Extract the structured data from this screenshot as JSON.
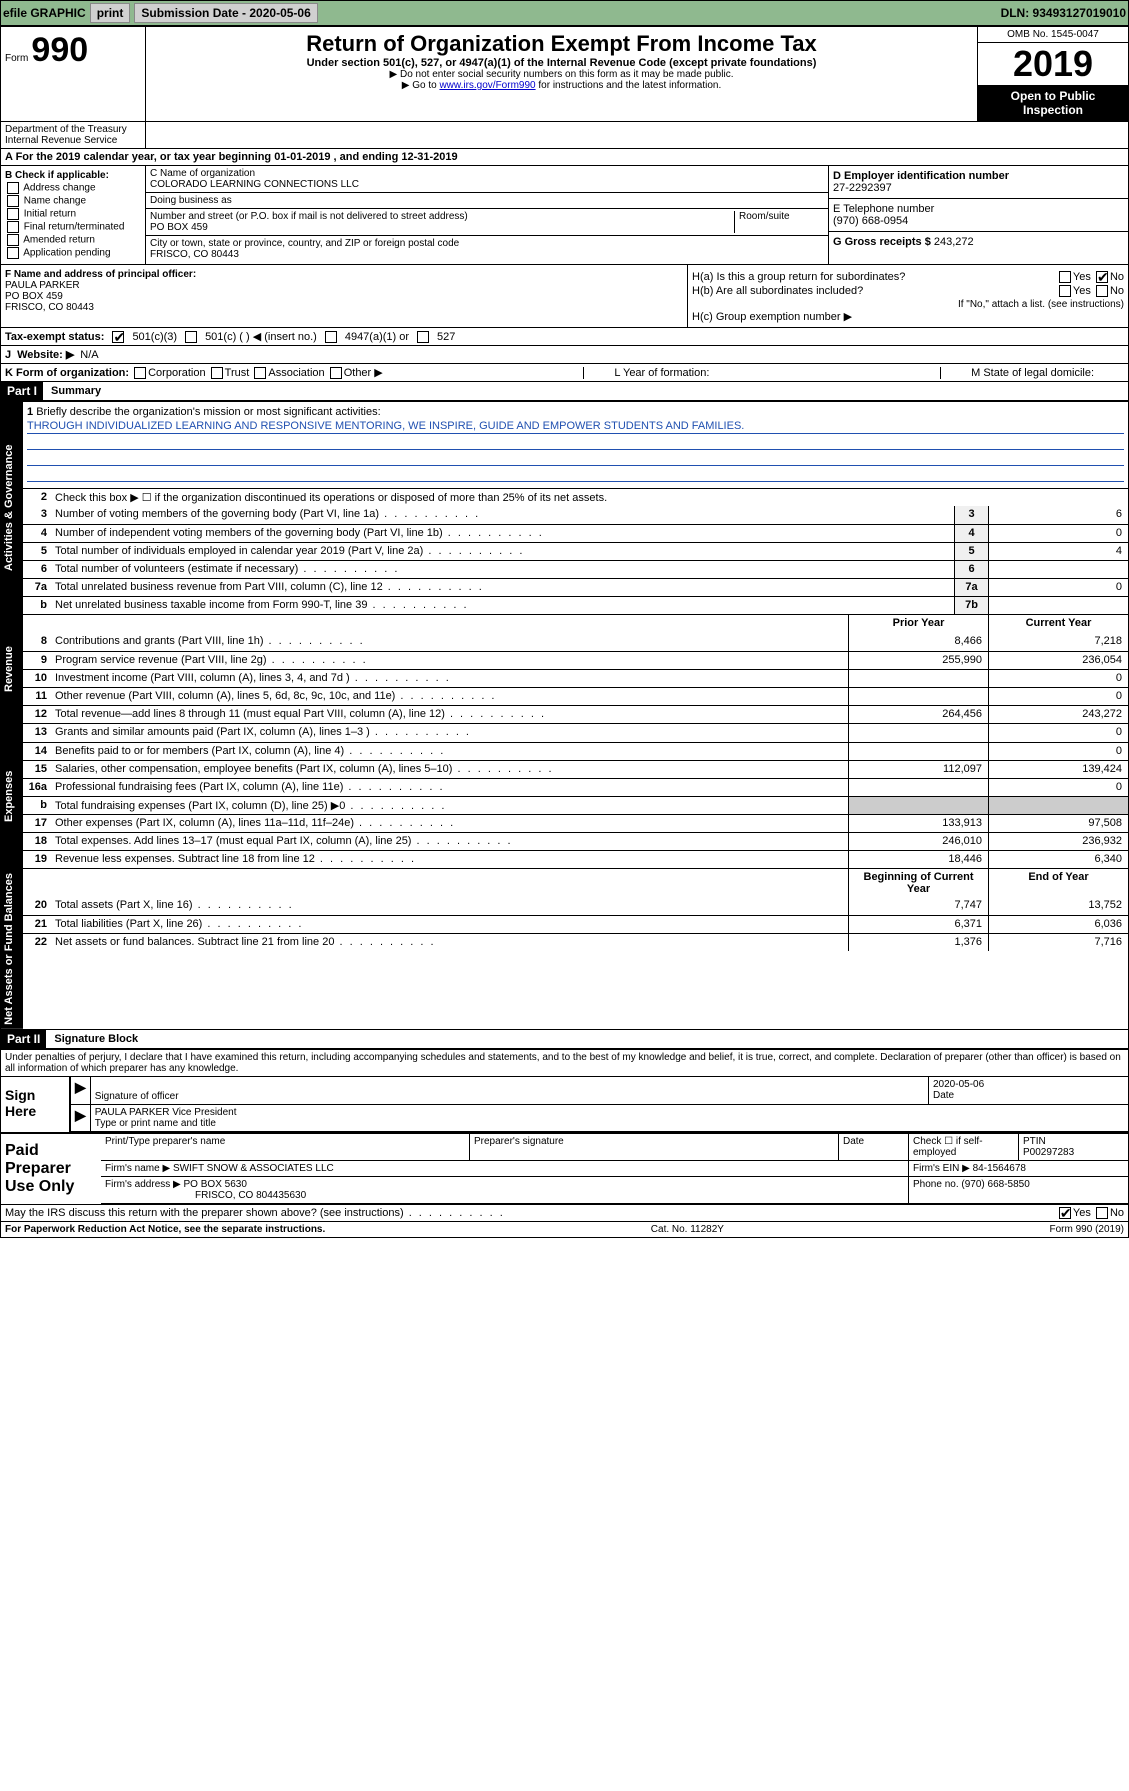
{
  "topbar": {
    "efile": "efile GRAPHIC",
    "print": "print",
    "subdate_label": "Submission Date - 2020-05-06",
    "dln_label": "DLN: 93493127019010"
  },
  "header": {
    "form_word": "Form",
    "form_num": "990",
    "dept1": "Department of the Treasury",
    "dept2": "Internal Revenue Service",
    "title": "Return of Organization Exempt From Income Tax",
    "subtitle": "Under section 501(c), 527, or 4947(a)(1) of the Internal Revenue Code (except private foundations)",
    "note1": "▶ Do not enter social security numbers on this form as it may be made public.",
    "note2a": "▶ Go to ",
    "note2link": "www.irs.gov/Form990",
    "note2b": " for instructions and the latest information.",
    "omb": "OMB No. 1545-0047",
    "year": "2019",
    "openpub": "Open to Public Inspection"
  },
  "A": {
    "text": "A For the 2019 calendar year, or tax year beginning 01-01-2019   , and ending 12-31-2019"
  },
  "B": {
    "label": "B Check if applicable:",
    "opts": [
      "Address change",
      "Name change",
      "Initial return",
      "Final return/terminated",
      "Amended return",
      "Application pending"
    ]
  },
  "C": {
    "name_label": "C Name of organization",
    "name": "COLORADO LEARNING CONNECTIONS LLC",
    "dba_label": "Doing business as",
    "dba": "",
    "addr_label": "Number and street (or P.O. box if mail is not delivered to street address)",
    "room_label": "Room/suite",
    "addr": "PO BOX 459",
    "city_label": "City or town, state or province, country, and ZIP or foreign postal code",
    "city": "FRISCO, CO  80443"
  },
  "D": {
    "label": "D Employer identification number",
    "value": "27-2292397"
  },
  "E": {
    "label": "E Telephone number",
    "value": "(970) 668-0954"
  },
  "G": {
    "label": "G Gross receipts $",
    "value": "243,272"
  },
  "F": {
    "label": "F  Name and address of principal officer:",
    "name": "PAULA PARKER",
    "addr1": "PO BOX 459",
    "addr2": "FRISCO, CO  80443"
  },
  "H": {
    "a": "H(a)  Is this a group return for subordinates?",
    "a_yes": "Yes",
    "a_no": "No",
    "b": "H(b)  Are all subordinates included?",
    "b_yes": "Yes",
    "b_no": "No",
    "b_note": "If \"No,\" attach a list. (see instructions)",
    "c": "H(c)  Group exemption number ▶"
  },
  "I": {
    "label": "Tax-exempt status:",
    "o1": "501(c)(3)",
    "o2": "501(c) (  ) ◀ (insert no.)",
    "o3": "4947(a)(1) or",
    "o4": "527"
  },
  "J": {
    "label": "Website: ▶",
    "value": "N/A"
  },
  "K": {
    "label": "K Form of organization:",
    "o1": "Corporation",
    "o2": "Trust",
    "o3": "Association",
    "o4": "Other ▶"
  },
  "L": {
    "label": "L Year of formation:"
  },
  "M": {
    "label": "M State of legal domicile:"
  },
  "part1": {
    "tag": "Part I",
    "title": "Summary"
  },
  "mission": {
    "num": "1",
    "label": "Briefly describe the organization's mission or most significant activities:",
    "text": "THROUGH INDIVIDUALIZED LEARNING AND RESPONSIVE MENTORING, WE INSPIRE, GUIDE AND EMPOWER STUDENTS AND FAMILIES."
  },
  "gov": {
    "l2": "Check this box ▶ ☐  if the organization discontinued its operations or disposed of more than 25% of its net assets.",
    "rows": [
      {
        "n": "3",
        "d": "Number of voting members of the governing body (Part VI, line 1a)",
        "box": "3",
        "v": "6"
      },
      {
        "n": "4",
        "d": "Number of independent voting members of the governing body (Part VI, line 1b)",
        "box": "4",
        "v": "0"
      },
      {
        "n": "5",
        "d": "Total number of individuals employed in calendar year 2019 (Part V, line 2a)",
        "box": "5",
        "v": "4"
      },
      {
        "n": "6",
        "d": "Total number of volunteers (estimate if necessary)",
        "box": "6",
        "v": ""
      },
      {
        "n": "7a",
        "d": "Total unrelated business revenue from Part VIII, column (C), line 12",
        "box": "7a",
        "v": "0"
      },
      {
        "n": "b",
        "d": "Net unrelated business taxable income from Form 990-T, line 39",
        "box": "7b",
        "v": ""
      }
    ]
  },
  "revhdr": {
    "prior": "Prior Year",
    "curr": "Current Year"
  },
  "revenue": [
    {
      "n": "8",
      "d": "Contributions and grants (Part VIII, line 1h)",
      "p": "8,466",
      "c": "7,218"
    },
    {
      "n": "9",
      "d": "Program service revenue (Part VIII, line 2g)",
      "p": "255,990",
      "c": "236,054"
    },
    {
      "n": "10",
      "d": "Investment income (Part VIII, column (A), lines 3, 4, and 7d )",
      "p": "",
      "c": "0"
    },
    {
      "n": "11",
      "d": "Other revenue (Part VIII, column (A), lines 5, 6d, 8c, 9c, 10c, and 11e)",
      "p": "",
      "c": "0"
    },
    {
      "n": "12",
      "d": "Total revenue—add lines 8 through 11 (must equal Part VIII, column (A), line 12)",
      "p": "264,456",
      "c": "243,272"
    }
  ],
  "expenses": [
    {
      "n": "13",
      "d": "Grants and similar amounts paid (Part IX, column (A), lines 1–3 )",
      "p": "",
      "c": "0"
    },
    {
      "n": "14",
      "d": "Benefits paid to or for members (Part IX, column (A), line 4)",
      "p": "",
      "c": "0"
    },
    {
      "n": "15",
      "d": "Salaries, other compensation, employee benefits (Part IX, column (A), lines 5–10)",
      "p": "112,097",
      "c": "139,424"
    },
    {
      "n": "16a",
      "d": "Professional fundraising fees (Part IX, column (A), line 11e)",
      "p": "",
      "c": "0"
    },
    {
      "n": "b",
      "d": "Total fundraising expenses (Part IX, column (D), line 25) ▶0",
      "p": "—",
      "c": "—"
    },
    {
      "n": "17",
      "d": "Other expenses (Part IX, column (A), lines 11a–11d, 11f–24e)",
      "p": "133,913",
      "c": "97,508"
    },
    {
      "n": "18",
      "d": "Total expenses. Add lines 13–17 (must equal Part IX, column (A), line 25)",
      "p": "246,010",
      "c": "236,932"
    },
    {
      "n": "19",
      "d": "Revenue less expenses. Subtract line 18 from line 12",
      "p": "18,446",
      "c": "6,340"
    }
  ],
  "nethdr": {
    "prior": "Beginning of Current Year",
    "curr": "End of Year"
  },
  "net": [
    {
      "n": "20",
      "d": "Total assets (Part X, line 16)",
      "p": "7,747",
      "c": "13,752"
    },
    {
      "n": "21",
      "d": "Total liabilities (Part X, line 26)",
      "p": "6,371",
      "c": "6,036"
    },
    {
      "n": "22",
      "d": "Net assets or fund balances. Subtract line 21 from line 20",
      "p": "1,376",
      "c": "7,716"
    }
  ],
  "sidebars": {
    "gov": "Activities & Governance",
    "rev": "Revenue",
    "exp": "Expenses",
    "net": "Net Assets or Fund Balances"
  },
  "part2": {
    "tag": "Part II",
    "title": "Signature Block"
  },
  "penalty": "Under penalties of perjury, I declare that I have examined this return, including accompanying schedules and statements, and to the best of my knowledge and belief, it is true, correct, and complete. Declaration of preparer (other than officer) is based on all information of which preparer has any knowledge.",
  "sign": {
    "here": "Sign Here",
    "sigoff": "Signature of officer",
    "date": "2020-05-06",
    "date_lbl": "Date",
    "name": "PAULA PARKER  Vice President",
    "name_lbl": "Type or print name and title"
  },
  "paid": {
    "title": "Paid Preparer Use Only",
    "h1": "Print/Type preparer's name",
    "h2": "Preparer's signature",
    "h3": "Date",
    "h4a": "Check ☐ if self-employed",
    "h5": "PTIN",
    "ptin": "P00297283",
    "firm_lbl": "Firm's name      ▶",
    "firm": "SWIFT SNOW & ASSOCIATES LLC",
    "ein_lbl": "Firm's EIN ▶",
    "ein": "84-1564678",
    "addr_lbl": "Firm's address ▶",
    "addr1": "PO BOX 5630",
    "addr2": "FRISCO, CO  804435630",
    "phone_lbl": "Phone no.",
    "phone": "(970) 668-5850"
  },
  "discuss": {
    "q": "May the IRS discuss this return with the preparer shown above? (see instructions)",
    "yes": "Yes",
    "no": "No"
  },
  "footer": {
    "left": "For Paperwork Reduction Act Notice, see the separate instructions.",
    "mid": "Cat. No. 11282Y",
    "right": "Form 990 (2019)"
  }
}
